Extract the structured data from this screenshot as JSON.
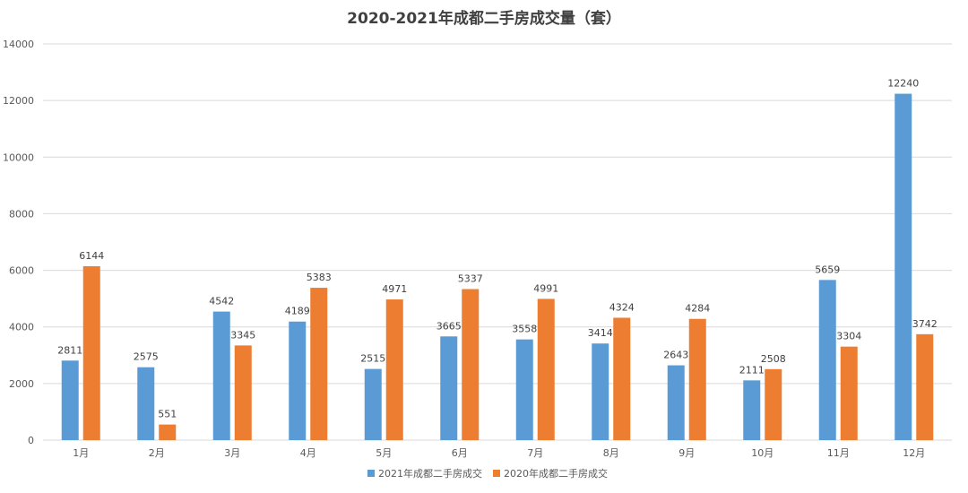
{
  "chart_data": {
    "type": "bar",
    "title": "2020-2021年成都二手房成交量（套）",
    "categories": [
      "1月",
      "2月",
      "3月",
      "4月",
      "5月",
      "6月",
      "7月",
      "8月",
      "9月",
      "10月",
      "11月",
      "12月"
    ],
    "series": [
      {
        "name": "2021年成都二手房成交",
        "color": "#5b9bd5",
        "values": [
          2811,
          2575,
          4542,
          4189,
          2515,
          3665,
          3558,
          3414,
          2643,
          2111,
          5659,
          12240
        ]
      },
      {
        "name": "2020年成都二手房成交",
        "color": "#ed7d31",
        "values": [
          6144,
          551,
          3345,
          5383,
          4971,
          5337,
          4991,
          4324,
          4284,
          2508,
          3304,
          3742
        ]
      }
    ],
    "yticks": [
      "0",
      "2000",
      "4000",
      "6000",
      "8000",
      "10000",
      "12000",
      "14000"
    ],
    "ylim": [
      0,
      14000
    ],
    "grid": true,
    "legend_position": "bottom",
    "data_labels": true
  }
}
